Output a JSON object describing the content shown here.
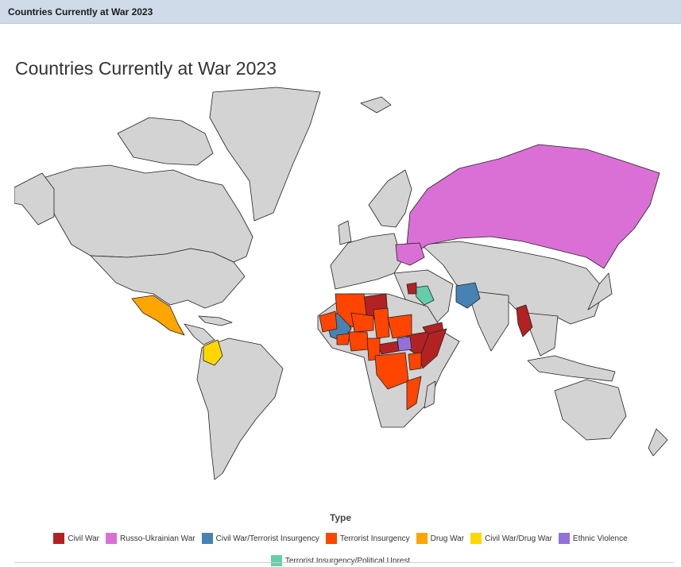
{
  "window": {
    "title": "Countries Currently at War 2023"
  },
  "map": {
    "title": "Countries Currently at War 2023",
    "base_color": "#d3d3d3",
    "legend_title": "Type",
    "legend": [
      {
        "label": "Civil War",
        "color": "#b22222"
      },
      {
        "label": "Russo-Ukrainian War",
        "color": "#da70d6"
      },
      {
        "label": "Civil War/Terrorist Insurgency",
        "color": "#4682b4"
      },
      {
        "label": "Terrorist Insurgency",
        "color": "#ff4500"
      },
      {
        "label": "Drug War",
        "color": "#ffa500"
      },
      {
        "label": "Civil War/Drug War",
        "color": "#ffd700"
      },
      {
        "label": "Ethnic Violence",
        "color": "#9370db"
      },
      {
        "label": "Terrorist Insurgency/Political Unrest",
        "color": "#66cdaa"
      }
    ],
    "countries": [
      {
        "name": "Russia",
        "type": "Russo-Ukrainian War"
      },
      {
        "name": "Ukraine",
        "type": "Russo-Ukrainian War"
      },
      {
        "name": "Mexico",
        "type": "Drug War"
      },
      {
        "name": "Colombia",
        "type": "Civil War/Drug War"
      },
      {
        "name": "Afghanistan",
        "type": "Civil War/Terrorist Insurgency"
      },
      {
        "name": "Mali",
        "type": "Civil War/Terrorist Insurgency"
      },
      {
        "name": "Iraq",
        "type": "Terrorist Insurgency/Political Unrest"
      },
      {
        "name": "Syria",
        "type": "Civil War"
      },
      {
        "name": "Libya",
        "type": "Civil War"
      },
      {
        "name": "Yemen",
        "type": "Civil War"
      },
      {
        "name": "Myanmar",
        "type": "Civil War"
      },
      {
        "name": "Ethiopia",
        "type": "Civil War"
      },
      {
        "name": "Somalia",
        "type": "Civil War"
      },
      {
        "name": "Central African Republic",
        "type": "Civil War"
      },
      {
        "name": "South Sudan",
        "type": "Ethnic Violence"
      },
      {
        "name": "Algeria",
        "type": "Terrorist Insurgency"
      },
      {
        "name": "Niger",
        "type": "Terrorist Insurgency"
      },
      {
        "name": "Chad",
        "type": "Terrorist Insurgency"
      },
      {
        "name": "Sudan",
        "type": "Terrorist Insurgency"
      },
      {
        "name": "Nigeria",
        "type": "Terrorist Insurgency"
      },
      {
        "name": "Burkina Faso",
        "type": "Terrorist Insurgency"
      },
      {
        "name": "Cameroon",
        "type": "Terrorist Insurgency"
      },
      {
        "name": "DR Congo",
        "type": "Terrorist Insurgency"
      },
      {
        "name": "Kenya",
        "type": "Terrorist Insurgency"
      },
      {
        "name": "Mozambique",
        "type": "Terrorist Insurgency"
      },
      {
        "name": "Mauritania",
        "type": "Terrorist Insurgency"
      }
    ]
  }
}
